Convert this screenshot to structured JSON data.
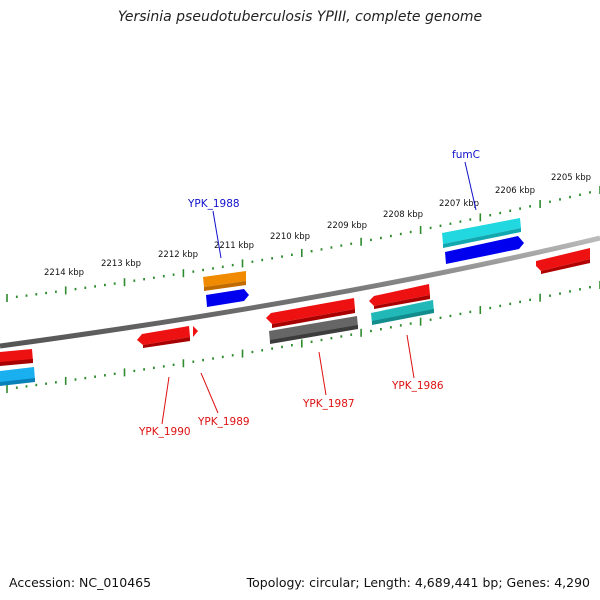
{
  "title": "Yersinia pseudotuberculosis YPIII, complete genome",
  "footer": {
    "accession": "Accession: NC_010465",
    "info": "Topology: circular; Length: 4,689,441 bp; Genes: 4,290"
  },
  "ruler": {
    "unit": "kbp",
    "labels": [
      "2214 kbp",
      "2213 kbp",
      "2212 kbp",
      "2211 kbp",
      "2210 kbp",
      "2209 kbp",
      "2208 kbp",
      "2207 kbp",
      "2206 kbp",
      "2205 kbp"
    ]
  },
  "colors": {
    "backbone": "#888888",
    "ruler": "#2e8b2e",
    "gene_red": "#ee1111",
    "gene_blue": "#0000ee",
    "gene_cyan": "#22d8e0",
    "gene_teal": "#22b8b8",
    "gene_orange": "#f08a00",
    "gene_gray": "#666666",
    "gene_skyblue": "#1ab0f0",
    "label_red": "#dd1111",
    "label_blue": "#1111cc"
  },
  "gene_labels": [
    {
      "id": "fumC",
      "text": "fumC",
      "color": "label_blue"
    },
    {
      "id": "ypk1988",
      "text": "YPK_1988",
      "color": "label_blue"
    },
    {
      "id": "ypk1990",
      "text": "YPK_1990",
      "color": "label_red"
    },
    {
      "id": "ypk1989",
      "text": "YPK_1989",
      "color": "label_red"
    },
    {
      "id": "ypk1987",
      "text": "YPK_1987",
      "color": "label_red"
    },
    {
      "id": "ypk1986",
      "text": "YPK_1986",
      "color": "label_red"
    }
  ]
}
